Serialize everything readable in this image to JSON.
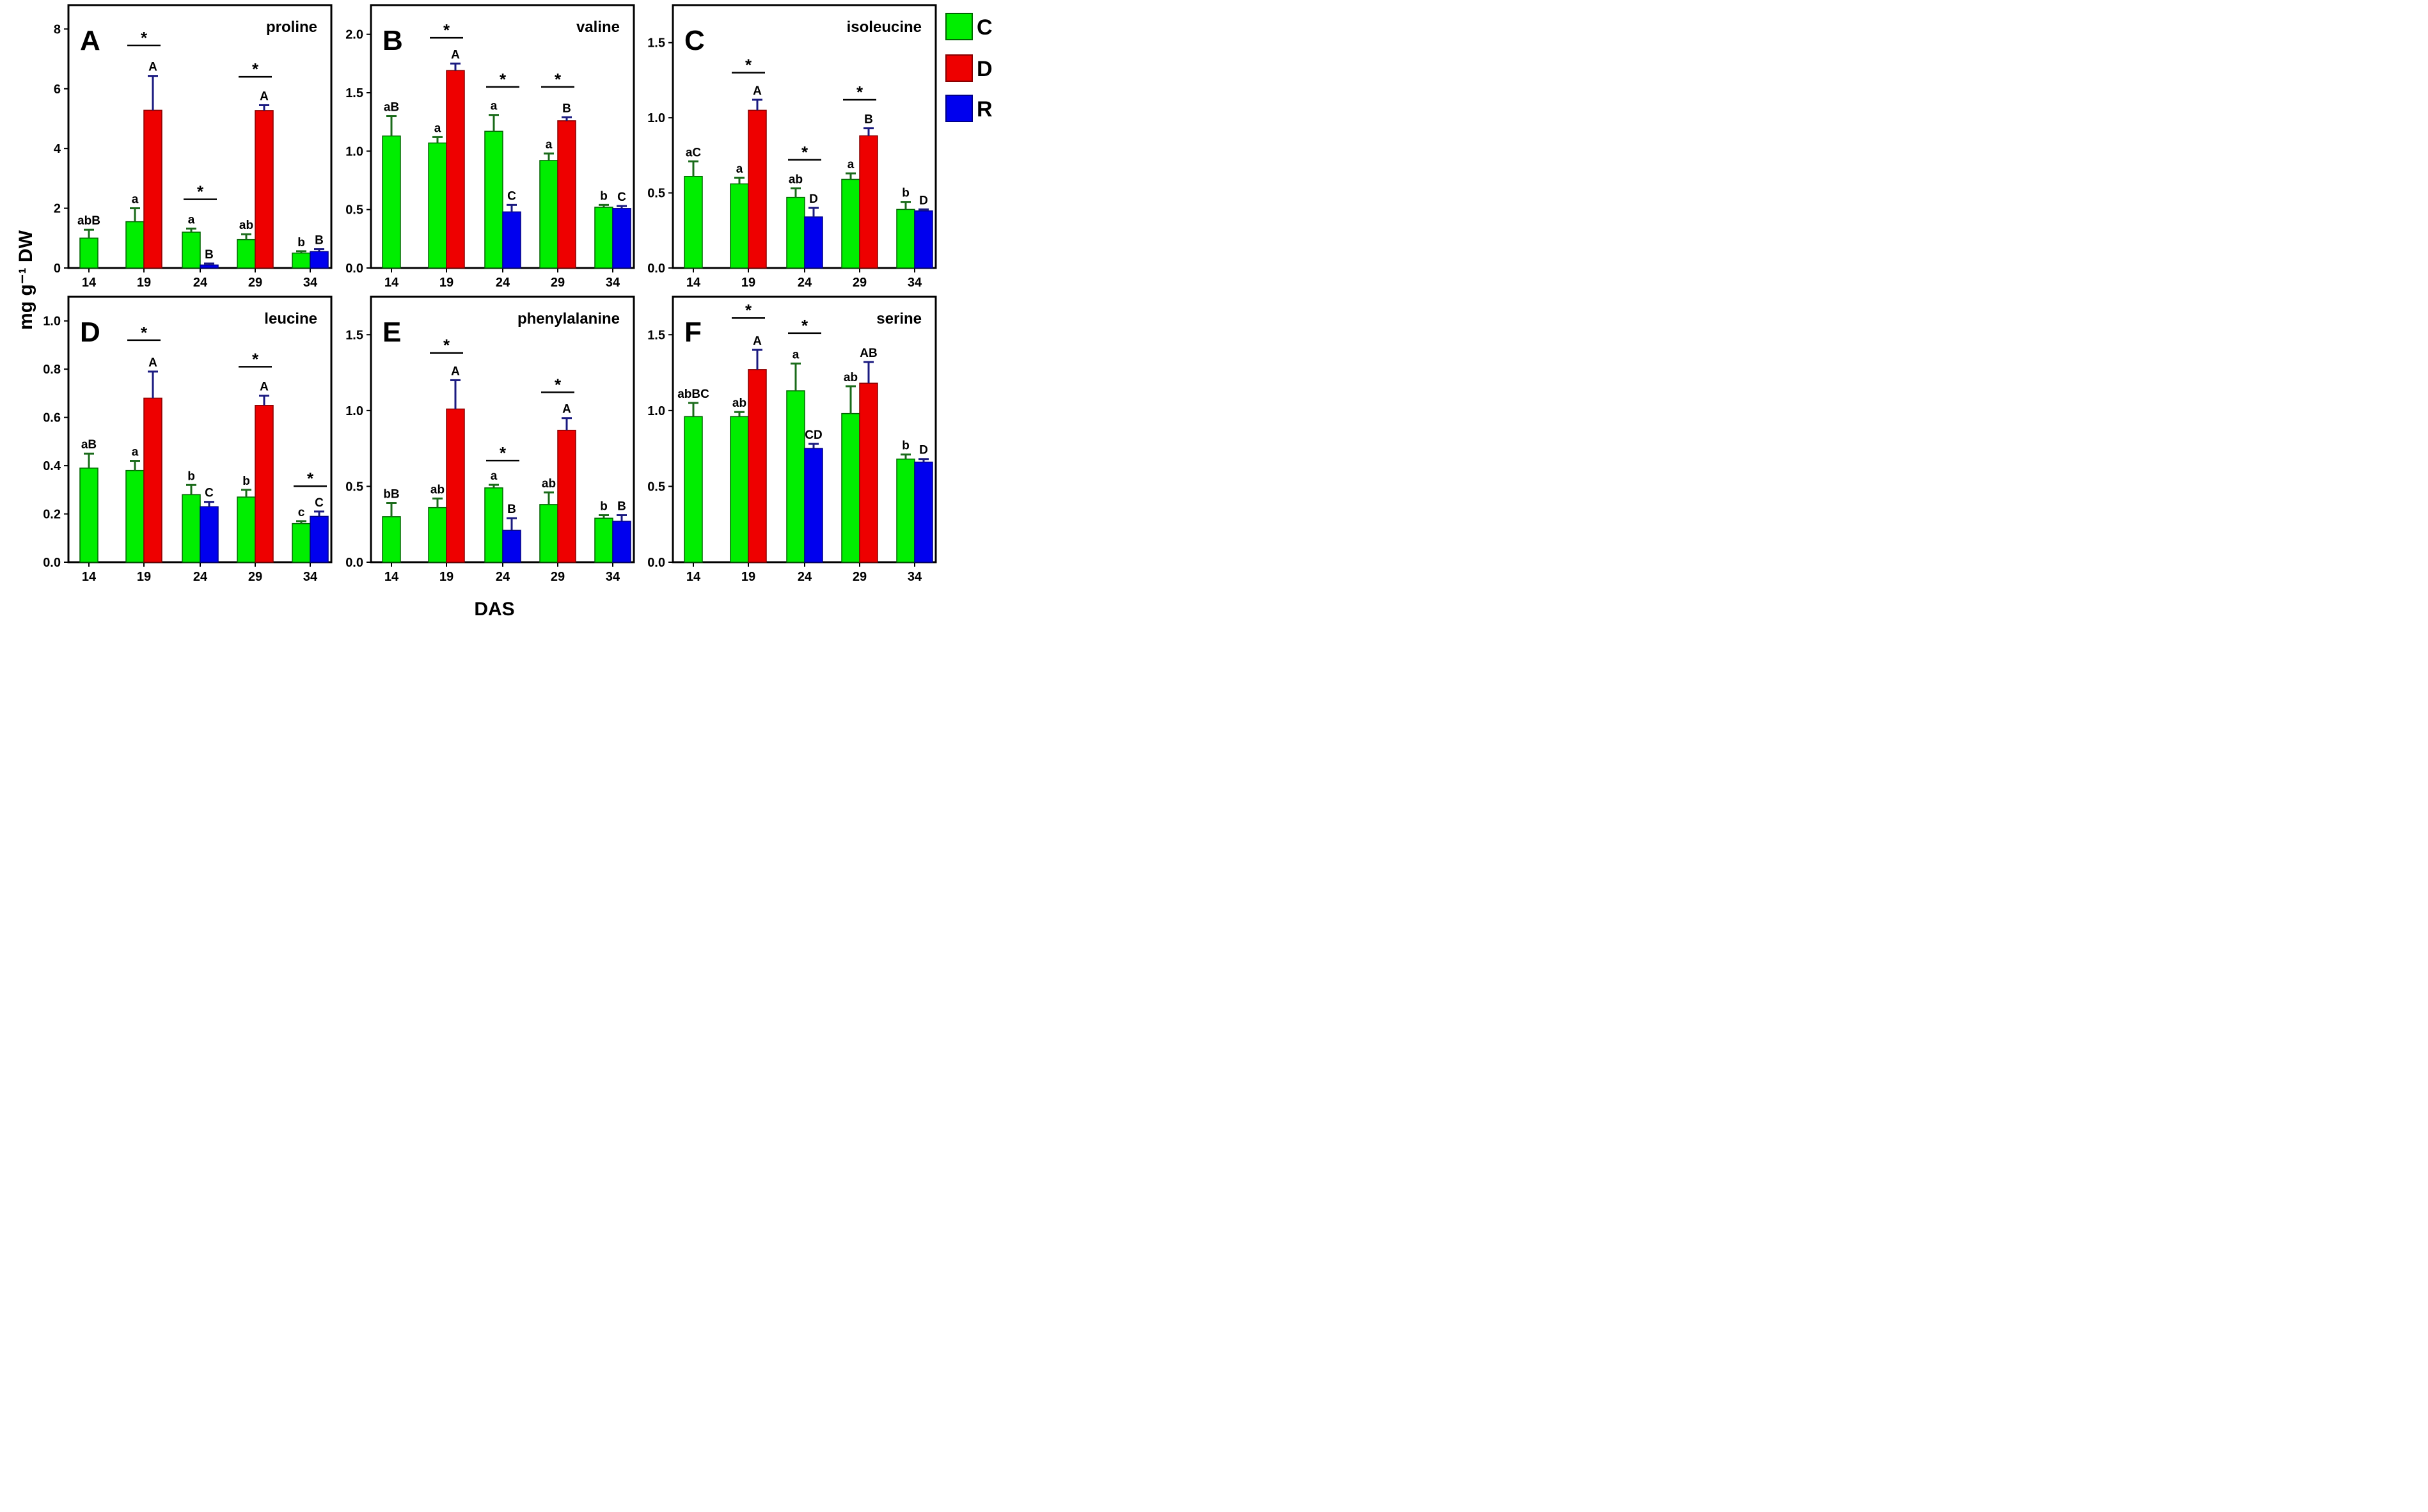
{
  "legend": [
    {
      "key": "C",
      "label": "C",
      "color": "#00ee00"
    },
    {
      "key": "D",
      "label": "D",
      "color": "#ee0000"
    },
    {
      "key": "R",
      "label": "R",
      "color": "#0000ee"
    }
  ],
  "colors": {
    "C": "#00ee00",
    "D": "#ee0000",
    "R": "#0000ee",
    "bar_outline": "#006600",
    "error_C": "#1a6b1a",
    "error_DR": "#1a1a80"
  },
  "xlabel": "DAS",
  "ylabel": "mg g⁻¹ DW",
  "chart_data": [
    {
      "type": "bar",
      "panel": "A",
      "title": "proline",
      "categories": [
        "14",
        "19",
        "24",
        "29",
        "34"
      ],
      "ylim": [
        0,
        8.8
      ],
      "yticks": [
        0,
        2,
        4,
        6,
        8
      ],
      "ytick_labels": [
        "0",
        "2",
        "4",
        "6",
        "8"
      ],
      "series": [
        {
          "name": "C",
          "values": [
            1.0,
            1.55,
            1.2,
            0.95,
            0.5
          ],
          "errors": [
            0.28,
            0.45,
            0.12,
            0.18,
            0.06
          ],
          "labels": [
            "abB",
            "a",
            "a",
            "ab",
            "b"
          ]
        },
        {
          "name": "D",
          "values": [
            null,
            5.28,
            null,
            5.27,
            null
          ],
          "errors": [
            null,
            1.15,
            null,
            0.18,
            null
          ],
          "labels": [
            null,
            "A",
            null,
            "A",
            null
          ]
        },
        {
          "name": "R",
          "values": [
            null,
            null,
            0.1,
            null,
            0.55
          ],
          "errors": [
            null,
            null,
            0.05,
            null,
            0.08
          ],
          "labels": [
            null,
            null,
            "B",
            null,
            "B"
          ]
        }
      ],
      "stars": [
        {
          "category": "19",
          "y": 7.45
        },
        {
          "category": "24",
          "y": 2.3
        },
        {
          "category": "29",
          "y": 6.4
        }
      ]
    },
    {
      "type": "bar",
      "panel": "B",
      "title": "valine",
      "categories": [
        "14",
        "19",
        "24",
        "29",
        "34"
      ],
      "ylim": [
        0,
        2.25
      ],
      "yticks": [
        0,
        0.5,
        1.0,
        1.5,
        2.0
      ],
      "ytick_labels": [
        "0.0",
        "0.5",
        "1.0",
        "1.5",
        "2.0"
      ],
      "series": [
        {
          "name": "C",
          "values": [
            1.13,
            1.07,
            1.17,
            0.92,
            0.52
          ],
          "errors": [
            0.17,
            0.05,
            0.14,
            0.06,
            0.02
          ],
          "labels": [
            "aB",
            "a",
            "a",
            "a",
            "b"
          ]
        },
        {
          "name": "D",
          "values": [
            null,
            1.69,
            null,
            1.26,
            null
          ],
          "errors": [
            null,
            0.06,
            null,
            0.03,
            null
          ],
          "labels": [
            null,
            "A",
            null,
            "B",
            null
          ]
        },
        {
          "name": "R",
          "values": [
            null,
            null,
            0.48,
            null,
            0.51
          ],
          "errors": [
            null,
            null,
            0.06,
            null,
            0.02
          ],
          "labels": [
            null,
            null,
            "C",
            null,
            "C"
          ]
        }
      ],
      "stars": [
        {
          "category": "19",
          "y": 1.97
        },
        {
          "category": "24",
          "y": 1.55
        },
        {
          "category": "29",
          "y": 1.55
        }
      ]
    },
    {
      "type": "bar",
      "panel": "C",
      "title": "isoleucine",
      "categories": [
        "14",
        "19",
        "24",
        "29",
        "34"
      ],
      "ylim": [
        0,
        1.75
      ],
      "yticks": [
        0,
        0.5,
        1.0,
        1.5
      ],
      "ytick_labels": [
        "0.0",
        "0.5",
        "1.0",
        "1.5"
      ],
      "series": [
        {
          "name": "C",
          "values": [
            0.61,
            0.56,
            0.47,
            0.59,
            0.39
          ],
          "errors": [
            0.1,
            0.04,
            0.06,
            0.04,
            0.05
          ],
          "labels": [
            "aC",
            "a",
            "ab",
            "a",
            "b"
          ]
        },
        {
          "name": "D",
          "values": [
            null,
            1.05,
            null,
            0.88,
            null
          ],
          "errors": [
            null,
            0.07,
            null,
            0.05,
            null
          ],
          "labels": [
            null,
            "A",
            null,
            "B",
            null
          ]
        },
        {
          "name": "R",
          "values": [
            null,
            null,
            0.34,
            null,
            0.38
          ],
          "errors": [
            null,
            null,
            0.06,
            null,
            0.01
          ],
          "labels": [
            null,
            null,
            "D",
            null,
            "D"
          ]
        }
      ],
      "stars": [
        {
          "category": "19",
          "y": 1.3
        },
        {
          "category": "24",
          "y": 0.72
        },
        {
          "category": "29",
          "y": 1.12
        }
      ]
    },
    {
      "type": "bar",
      "panel": "D",
      "title": "leucine",
      "categories": [
        "14",
        "19",
        "24",
        "29",
        "34"
      ],
      "ylim": [
        0,
        1.1
      ],
      "yticks": [
        0,
        0.2,
        0.4,
        0.6,
        0.8,
        1.0
      ],
      "ytick_labels": [
        "0.0",
        "0.2",
        "0.4",
        "0.6",
        "0.8",
        "1.0"
      ],
      "series": [
        {
          "name": "C",
          "values": [
            0.39,
            0.38,
            0.28,
            0.27,
            0.16
          ],
          "errors": [
            0.06,
            0.04,
            0.04,
            0.03,
            0.01
          ],
          "labels": [
            "aB",
            "a",
            "b",
            "b",
            "c"
          ]
        },
        {
          "name": "D",
          "values": [
            null,
            0.68,
            null,
            0.65,
            null
          ],
          "errors": [
            null,
            0.11,
            null,
            0.04,
            null
          ],
          "labels": [
            null,
            "A",
            null,
            "A",
            null
          ]
        },
        {
          "name": "R",
          "values": [
            null,
            null,
            0.23,
            null,
            0.19
          ],
          "errors": [
            null,
            null,
            0.02,
            null,
            0.02
          ],
          "labels": [
            null,
            null,
            "C",
            null,
            "C"
          ]
        }
      ],
      "stars": [
        {
          "category": "19",
          "y": 0.92
        },
        {
          "category": "29",
          "y": 0.81
        },
        {
          "category": "34",
          "y": 0.315
        }
      ]
    },
    {
      "type": "bar",
      "panel": "E",
      "title": "phenylalanine",
      "categories": [
        "14",
        "19",
        "24",
        "29",
        "34"
      ],
      "ylim": [
        0,
        1.75
      ],
      "yticks": [
        0,
        0.5,
        1.0,
        1.5
      ],
      "ytick_labels": [
        "0.0",
        "0.5",
        "1.0",
        "1.5"
      ],
      "series": [
        {
          "name": "C",
          "values": [
            0.3,
            0.36,
            0.49,
            0.38,
            0.29
          ],
          "errors": [
            0.09,
            0.06,
            0.02,
            0.08,
            0.02
          ],
          "labels": [
            "bB",
            "ab",
            "a",
            "ab",
            "b"
          ]
        },
        {
          "name": "D",
          "values": [
            null,
            1.01,
            null,
            0.87,
            null
          ],
          "errors": [
            null,
            0.19,
            null,
            0.08,
            null
          ],
          "labels": [
            null,
            "A",
            null,
            "A",
            null
          ]
        },
        {
          "name": "R",
          "values": [
            null,
            null,
            0.21,
            null,
            0.27
          ],
          "errors": [
            null,
            null,
            0.08,
            null,
            0.04
          ],
          "labels": [
            null,
            null,
            "B",
            null,
            "B"
          ]
        }
      ],
      "stars": [
        {
          "category": "19",
          "y": 1.38
        },
        {
          "category": "24",
          "y": 0.67
        },
        {
          "category": "29",
          "y": 1.12
        }
      ]
    },
    {
      "type": "bar",
      "panel": "F",
      "title": "serine",
      "categories": [
        "14",
        "19",
        "24",
        "29",
        "34"
      ],
      "ylim": [
        0,
        1.75
      ],
      "yticks": [
        0,
        0.5,
        1.0,
        1.5
      ],
      "ytick_labels": [
        "0.0",
        "0.5",
        "1.0",
        "1.5"
      ],
      "series": [
        {
          "name": "C",
          "values": [
            0.96,
            0.96,
            1.13,
            0.98,
            0.68
          ],
          "errors": [
            0.09,
            0.03,
            0.18,
            0.18,
            0.03
          ],
          "labels": [
            "abBC",
            "ab",
            "a",
            "ab",
            "b"
          ]
        },
        {
          "name": "D",
          "values": [
            null,
            1.27,
            null,
            1.18,
            null
          ],
          "errors": [
            null,
            0.13,
            null,
            0.14,
            null
          ],
          "labels": [
            null,
            "A",
            null,
            "AB",
            null
          ]
        },
        {
          "name": "R",
          "values": [
            null,
            null,
            0.75,
            null,
            0.66
          ],
          "errors": [
            null,
            null,
            0.03,
            null,
            0.02
          ],
          "labels": [
            null,
            null,
            "CD",
            null,
            "D"
          ]
        }
      ],
      "stars": [
        {
          "category": "19",
          "y": 1.61
        },
        {
          "category": "24",
          "y": 1.51
        }
      ]
    }
  ]
}
